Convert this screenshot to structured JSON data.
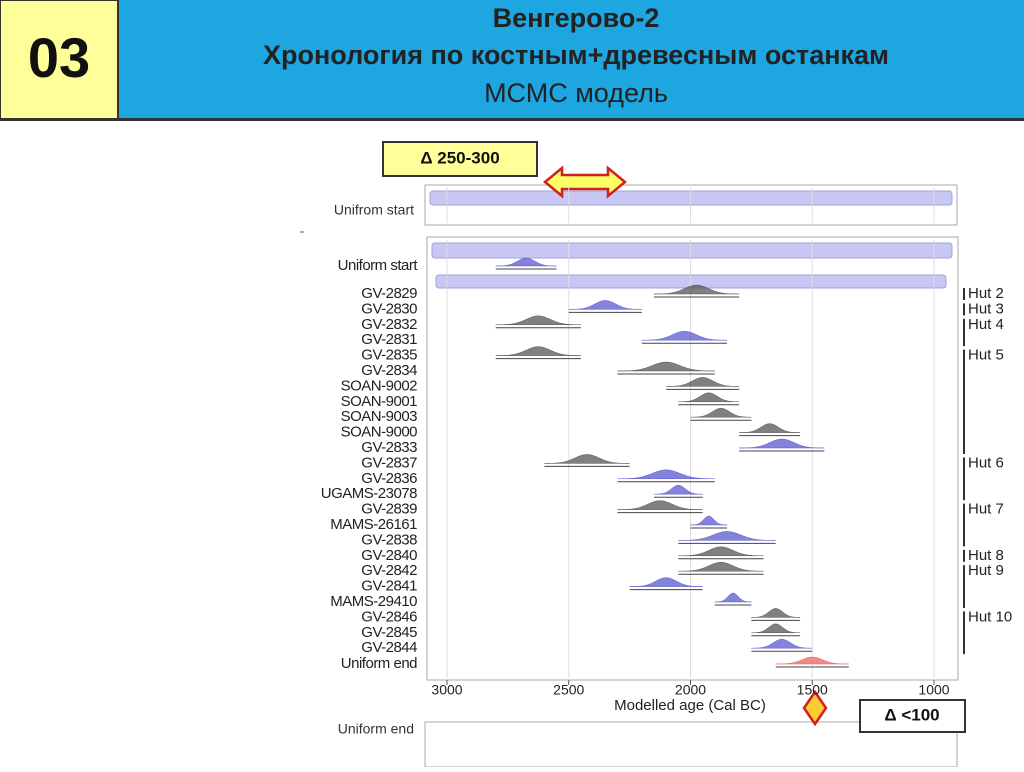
{
  "header": {
    "number": "03",
    "title": "Венгерово-2",
    "subtitle": "Хронология по костным+древесным останкам",
    "model": "МСМС модель"
  },
  "notes": {
    "delta_top": "Δ 250-300",
    "delta_bottom": "Δ <100"
  },
  "chart_data": {
    "type": "oxcal",
    "top_label": "Unifrom start",
    "bottom_label": "Uniform end",
    "xlabel": "Modelled age (Cal BC)",
    "xlim": [
      3000,
      1000
    ],
    "xticks": [
      3000,
      2500,
      2000,
      1500,
      1000
    ],
    "start": {
      "label": "Uniform start",
      "range": [
        2800,
        2550
      ],
      "color": "#5a5ad0"
    },
    "end": {
      "label": "Uniform end",
      "range": [
        1650,
        1350
      ],
      "color": "#f06060"
    },
    "rows": [
      {
        "label": "GV-2829",
        "range": [
          2150,
          1800
        ],
        "color": "#555"
      },
      {
        "label": "GV-2830",
        "range": [
          2500,
          2200
        ],
        "color": "#5a5ad0"
      },
      {
        "label": "GV-2832",
        "range": [
          2800,
          2450
        ],
        "color": "#555"
      },
      {
        "label": "GV-2831",
        "range": [
          2200,
          1850
        ],
        "color": "#5a5ad0"
      },
      {
        "label": "GV-2835",
        "range": [
          2800,
          2450
        ],
        "color": "#555"
      },
      {
        "label": "GV-2834",
        "range": [
          2300,
          1900
        ],
        "color": "#555"
      },
      {
        "label": "SOAN-9002",
        "range": [
          2100,
          1800
        ],
        "color": "#555"
      },
      {
        "label": "SOAN-9001",
        "range": [
          2050,
          1800
        ],
        "color": "#555"
      },
      {
        "label": "SOAN-9003",
        "range": [
          2000,
          1750
        ],
        "color": "#555"
      },
      {
        "label": "SOAN-9000",
        "range": [
          1800,
          1550
        ],
        "color": "#555"
      },
      {
        "label": "GV-2833",
        "range": [
          1800,
          1450
        ],
        "color": "#5a5ad0"
      },
      {
        "label": "GV-2837",
        "range": [
          2600,
          2250
        ],
        "color": "#555"
      },
      {
        "label": "GV-2836",
        "range": [
          2300,
          1900
        ],
        "color": "#5a5ad0"
      },
      {
        "label": "UGAMS-23078",
        "range": [
          2150,
          1950
        ],
        "color": "#5a5ad0"
      },
      {
        "label": "GV-2839",
        "range": [
          2300,
          1950
        ],
        "color": "#555"
      },
      {
        "label": "MAMS-26161",
        "range": [
          2000,
          1850
        ],
        "color": "#5a5ad0"
      },
      {
        "label": "GV-2838",
        "range": [
          2050,
          1650
        ],
        "color": "#5a5ad0"
      },
      {
        "label": "GV-2840",
        "range": [
          2050,
          1700
        ],
        "color": "#555"
      },
      {
        "label": "GV-2842",
        "range": [
          2050,
          1700
        ],
        "color": "#555"
      },
      {
        "label": "GV-2841",
        "range": [
          2250,
          1950
        ],
        "color": "#5a5ad0"
      },
      {
        "label": "MAMS-29410",
        "range": [
          1900,
          1750
        ],
        "color": "#5a5ad0"
      },
      {
        "label": "GV-2846",
        "range": [
          1750,
          1550
        ],
        "color": "#555"
      },
      {
        "label": "GV-2845",
        "range": [
          1750,
          1550
        ],
        "color": "#555"
      },
      {
        "label": "GV-2844",
        "range": [
          1750,
          1500
        ],
        "color": "#5a5ad0"
      }
    ],
    "huts": [
      {
        "label": "Hut 2",
        "rows": [
          0,
          0
        ]
      },
      {
        "label": "Hut 3",
        "rows": [
          1,
          1
        ]
      },
      {
        "label": "Hut 4",
        "rows": [
          2,
          3
        ]
      },
      {
        "label": "Hut 5",
        "rows": [
          4,
          10
        ]
      },
      {
        "label": "Hut 6",
        "rows": [
          11,
          13
        ]
      },
      {
        "label": "Hut 7",
        "rows": [
          14,
          16
        ]
      },
      {
        "label": "Hut 8",
        "rows": [
          17,
          17
        ]
      },
      {
        "label": "Hut 9",
        "rows": [
          18,
          20
        ]
      },
      {
        "label": "Hut 10",
        "rows": [
          21,
          23
        ]
      }
    ]
  }
}
